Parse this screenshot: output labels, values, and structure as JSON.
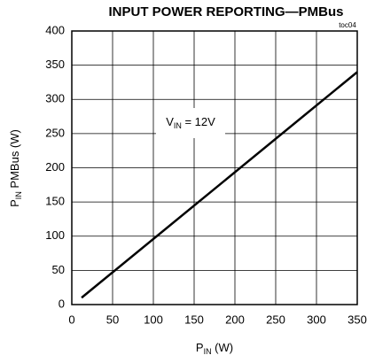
{
  "chart_data": {
    "type": "line",
    "title": "INPUT POWER REPORTING—PMBus",
    "subtitle": "toc04",
    "xlabel": {
      "main": "P",
      "sub": "IN",
      "rest": " (W)"
    },
    "ylabel": {
      "main": "P",
      "sub": "IN",
      "rest": " PMBus (W)"
    },
    "annotation": {
      "main": "V",
      "sub": "IN",
      "rest": " = 12V"
    },
    "x": [
      12,
      350
    ],
    "series": [
      {
        "name": "VIN = 12V",
        "color": "#000000",
        "values": [
          10,
          340
        ]
      }
    ],
    "xlim": [
      0,
      350
    ],
    "ylim": [
      0,
      400
    ],
    "xticks": [
      0,
      50,
      100,
      150,
      200,
      250,
      300,
      350
    ],
    "yticks": [
      0,
      50,
      100,
      150,
      200,
      250,
      300,
      350,
      400
    ],
    "grid": true
  }
}
